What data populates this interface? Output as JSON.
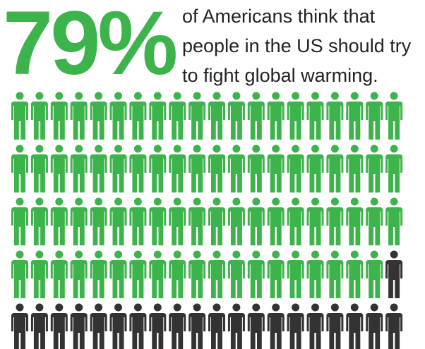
{
  "chart_data": {
    "type": "pictograph",
    "values": [
      79
    ],
    "value_labels": [
      "79%"
    ],
    "subtitle": "of Americans think that people in the US should try to fight global warming.",
    "color": "#3cb44b",
    "rest_color": "#333333"
  }
}
